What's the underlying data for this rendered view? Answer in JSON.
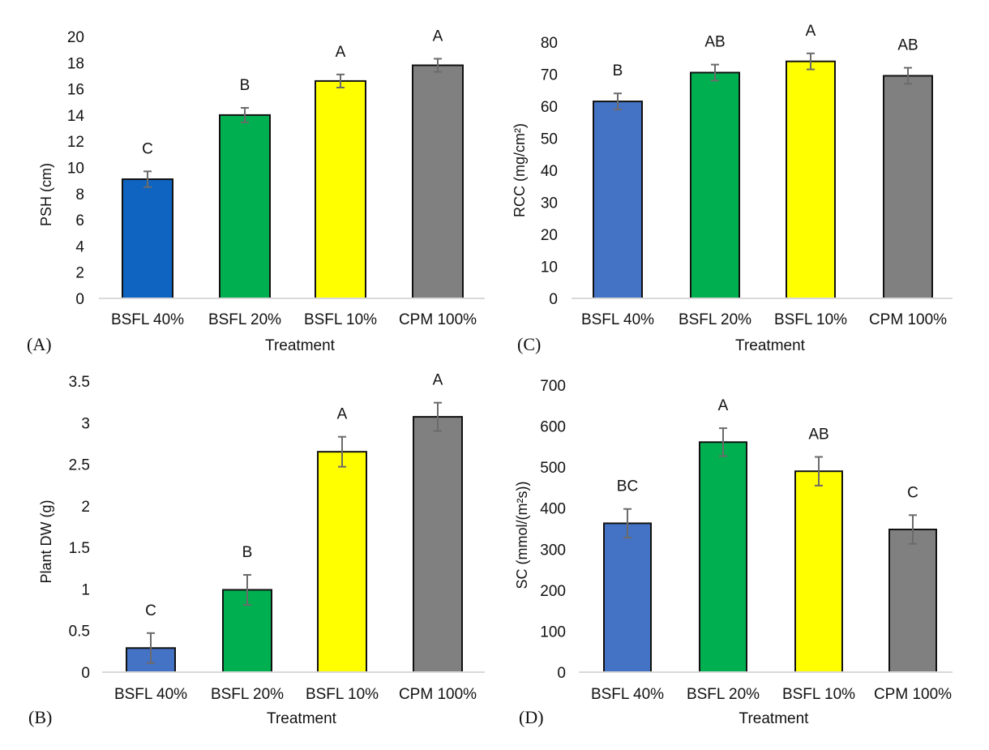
{
  "chart_data": [
    {
      "id": "A",
      "type": "bar",
      "panel_label": "(A)",
      "title": "",
      "xlabel": "Treatment",
      "ylabel": "PSH (cm)",
      "ylim": [
        0,
        20
      ],
      "yticks": [
        0,
        2,
        4,
        6,
        8,
        10,
        12,
        14,
        16,
        18,
        20
      ],
      "ytick_labels": [
        "0",
        "2",
        "4",
        "6",
        "8",
        "10",
        "12",
        "14",
        "16",
        "18",
        "20"
      ],
      "categories": [
        "BSFL 40%",
        "BSFL 20%",
        "BSFL 10%",
        "CPM 100%"
      ],
      "values": [
        9.1,
        14.0,
        16.6,
        17.8
      ],
      "errors": [
        0.6,
        0.55,
        0.5,
        0.5
      ],
      "significance": [
        "C",
        "B",
        "A",
        "A"
      ],
      "colors": [
        "#0E64C0",
        "#00B050",
        "#FFFF00",
        "#808080"
      ],
      "grid": false
    },
    {
      "id": "C",
      "type": "bar",
      "panel_label": "(C)",
      "title": "",
      "xlabel": "Treatment",
      "ylabel": "RCC  (mg/cm²)",
      "ylim": [
        0,
        80
      ],
      "yticks": [
        0,
        10,
        20,
        30,
        40,
        50,
        60,
        70,
        80
      ],
      "ytick_labels": [
        "0",
        "10",
        "20",
        "30",
        "40",
        "50",
        "60",
        "70",
        "80"
      ],
      "categories": [
        "BSFL 40%",
        "BSFL 20%",
        "BSFL 10%",
        "CPM 100%"
      ],
      "values": [
        61.5,
        70.5,
        74.0,
        69.5
      ],
      "errors": [
        2.5,
        2.5,
        2.5,
        2.5
      ],
      "significance": [
        "B",
        "AB",
        "A",
        "AB"
      ],
      "colors": [
        "#4472C4",
        "#00B050",
        "#FFFF00",
        "#808080"
      ],
      "grid": false
    },
    {
      "id": "B",
      "type": "bar",
      "panel_label": "(B)",
      "title": "",
      "xlabel": "Treatment",
      "ylabel": "Plant DW (g)",
      "ylim": [
        0,
        3.5
      ],
      "yticks": [
        0,
        0.5,
        1,
        1.5,
        2,
        2.5,
        3,
        3.5
      ],
      "ytick_labels": [
        "0",
        "0.5",
        "1",
        "1.5",
        "2",
        "2.5",
        "3",
        "3.5"
      ],
      "categories": [
        "BSFL 40%",
        "BSFL 20%",
        "BSFL 10%",
        "CPM 100%"
      ],
      "values": [
        0.29,
        0.99,
        2.65,
        3.07
      ],
      "errors": [
        0.18,
        0.18,
        0.18,
        0.17
      ],
      "significance": [
        "C",
        "B",
        "A",
        "A"
      ],
      "colors": [
        "#4472C4",
        "#00B050",
        "#FFFF00",
        "#808080"
      ],
      "grid": false
    },
    {
      "id": "D",
      "type": "bar",
      "panel_label": "(D)",
      "title": "",
      "xlabel": "Treatment",
      "ylabel": "SC (mmol/(m²s))",
      "ylim": [
        0,
        700
      ],
      "yticks": [
        0,
        100,
        200,
        300,
        400,
        500,
        600,
        700
      ],
      "ytick_labels": [
        "0",
        "100",
        "200",
        "300",
        "400",
        "500",
        "600",
        "700"
      ],
      "categories": [
        "BSFL 40%",
        "BSFL 20%",
        "BSFL 10%",
        "CPM 100%"
      ],
      "values": [
        363,
        561,
        490,
        348
      ],
      "errors": [
        35,
        34,
        35,
        35
      ],
      "significance": [
        "BC",
        "A",
        "AB",
        "C"
      ],
      "colors": [
        "#4472C4",
        "#00B050",
        "#FFFF00",
        "#808080"
      ],
      "grid": false
    }
  ]
}
